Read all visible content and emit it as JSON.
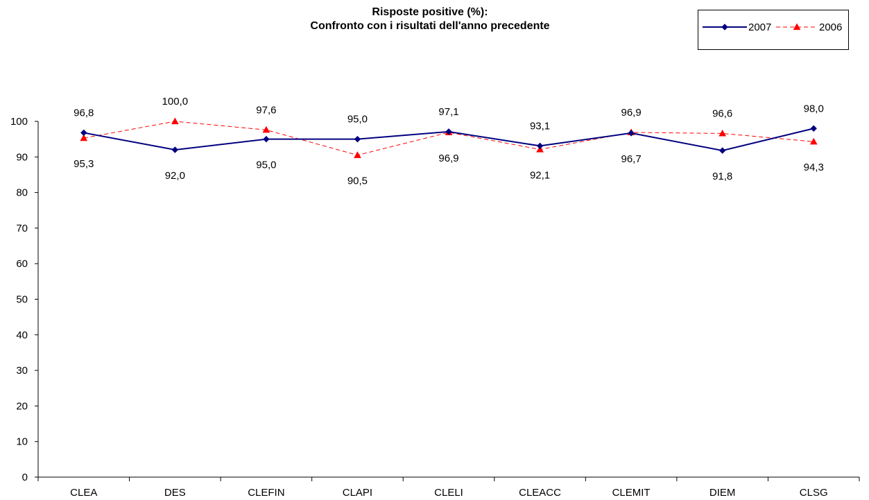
{
  "chart_data": {
    "type": "line",
    "title_line1": "Risposte positive (%):",
    "title_line2": "Confronto con i risultati dell'anno precedente",
    "xlabel": "",
    "ylabel": "",
    "ylim": [
      0,
      100
    ],
    "yticks": [
      "0",
      "10",
      "20",
      "30",
      "40",
      "50",
      "60",
      "70",
      "80",
      "90",
      "100"
    ],
    "categories": [
      "CLEA",
      "DES",
      "CLEFIN",
      "CLAPI",
      "CLELI",
      "CLEACC",
      "CLEMIT",
      "DIEM",
      "CLSG"
    ],
    "series": [
      {
        "name": "2007",
        "color": "#000080",
        "marker": "diamond",
        "line_style": "solid",
        "values": [
          96.8,
          92.0,
          95.0,
          95.0,
          97.1,
          93.1,
          96.7,
          91.8,
          98.0
        ],
        "labels": [
          "96,8",
          "92,0",
          "95,0",
          "95,0",
          "97,1",
          "93,1",
          "96,7",
          "91,8",
          "98,0"
        ]
      },
      {
        "name": "2006",
        "color": "#ff0000",
        "marker": "triangle",
        "line_style": "dashed",
        "values": [
          95.3,
          100.0,
          97.6,
          90.5,
          96.9,
          92.1,
          96.9,
          96.6,
          94.3
        ],
        "labels": [
          "95,3",
          "100,0",
          "97,6",
          "90,5",
          "96,9",
          "92,1",
          "96,9",
          "96,6",
          "94,3"
        ]
      }
    ],
    "legend_placement": "top-right",
    "grid": false
  }
}
